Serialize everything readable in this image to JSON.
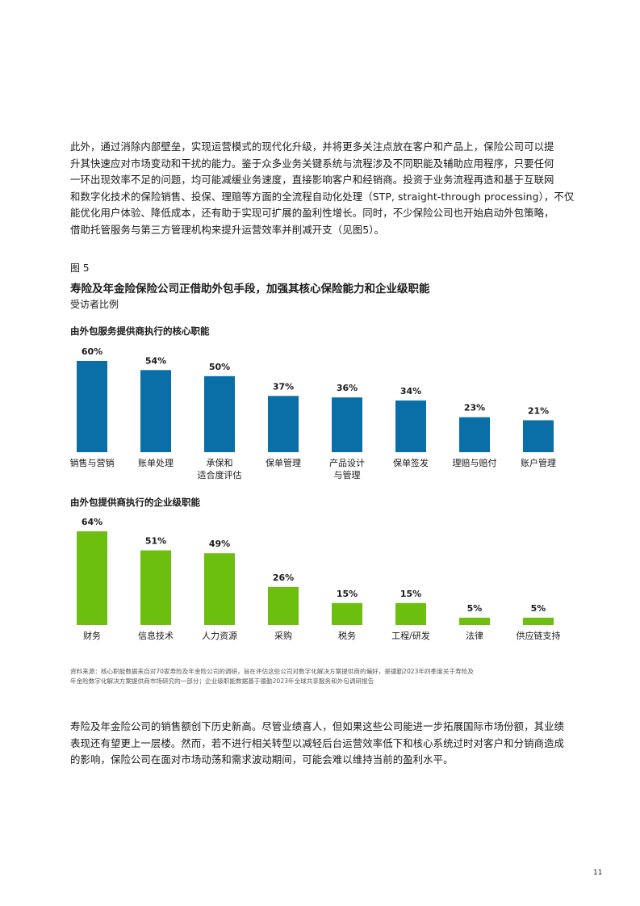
{
  "intro_paragraph": [
    "此外，通过消除内部壁垒，实现运营模式的现代化升级，并将更多关注点放在客户和产品上，保险公司可以提",
    "升其快速应对市场变动和干扰的能力。鉴于众多业务关键系统与流程涉及不同职能及辅助应用程序，只要任何",
    "一环出现效率不足的问题，均可能减缓业务速度，直接影响客户和经销商。投资于业务流程再造和基于互联网",
    "和数字化技术的保险销售、投保、理赔等方面的全流程自动化处理（STP, straight-through processing），不仅",
    "能优化用户体验、降低成本，还有助于实现可扩展的盈利性增长。同时，不少保险公司也开始启动外包策略，",
    "借助托管服务与第三方管理机构来提升运营效率并削减开支（见图5）。"
  ],
  "figure": {
    "label": "图 5",
    "title": "寿险及年金险保险公司正借助外包手段，加强其核心保险能力和企业级职能",
    "subtitle": "受访者比例"
  },
  "chart_data": [
    {
      "type": "bar",
      "title": "由外包服务提供商执行的核心职能",
      "categories": [
        [
          "销售与营销"
        ],
        [
          "账单处理"
        ],
        [
          "承保和",
          "适合度评估"
        ],
        [
          "保单管理"
        ],
        [
          "产品设计",
          "与管理"
        ],
        [
          "保单签发"
        ],
        [
          "理赔与赔付"
        ],
        [
          "账户管理"
        ]
      ],
      "values": [
        60,
        54,
        50,
        37,
        36,
        34,
        23,
        21
      ],
      "data_labels": [
        "60%",
        "54%",
        "50%",
        "37%",
        "36%",
        "34%",
        "23%",
        "21%"
      ],
      "color": "#0a6fa6",
      "ylim": [
        0,
        60
      ]
    },
    {
      "type": "bar",
      "title": "由外包提供商执行的企业级职能",
      "categories": [
        [
          "财务"
        ],
        [
          "信息技术"
        ],
        [
          "人力资源"
        ],
        [
          "采购"
        ],
        [
          "税务"
        ],
        [
          "工程/研发"
        ],
        [
          "法律"
        ],
        [
          "供应链支持"
        ]
      ],
      "values": [
        64,
        51,
        49,
        26,
        15,
        15,
        5,
        5
      ],
      "data_labels": [
        "64%",
        "51%",
        "49%",
        "26%",
        "15%",
        "15%",
        "5%",
        "5%"
      ],
      "color": "#6cbf0e",
      "ylim": [
        0,
        64
      ]
    }
  ],
  "source_note": [
    "资料来源：核心职能数据来自对70家寿险及年金险公司的调研，旨在评估这些公司对数字化解决方案提供商的偏好，是德勤2023年四季度关于寿险及",
    "年金险数字化解决方案提供商市场研究的一部分；企业级职能数据基于德勤2023年全球共享服务和外包调研报告"
  ],
  "closing_paragraph": [
    "寿险及年金险公司的销售额创下历史新高。尽管业绩喜人，但如果这些公司能进一步拓展国际市场份额，其业绩",
    "表现还有望更上一层楼。然而，若不进行相关转型以减轻后台运营效率低下和核心系统过时对客户和分销商造成",
    "的影响，保险公司在面对市场动荡和需求波动期间，可能会难以维持当前的盈利水平。"
  ],
  "page_number": "11"
}
